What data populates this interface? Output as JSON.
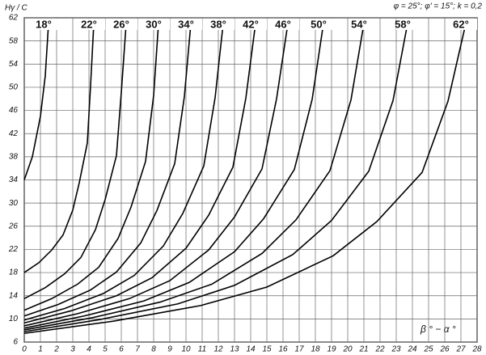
{
  "chart_data": {
    "type": "line",
    "y_label": "Hγ / C",
    "x_label": "β ° − α °",
    "annotation": "φ = 25°; φ' = 15°; k = 0,2",
    "xlim": [
      0,
      28
    ],
    "ylim": [
      6,
      62
    ],
    "xticks": [
      0,
      1,
      2,
      3,
      4,
      5,
      6,
      7,
      8,
      9,
      10,
      11,
      12,
      13,
      14,
      15,
      16,
      17,
      18,
      19,
      20,
      21,
      22,
      23,
      24,
      25,
      26,
      27,
      28
    ],
    "yticks": [
      6,
      10,
      14,
      18,
      22,
      26,
      30,
      34,
      38,
      42,
      46,
      50,
      54,
      58,
      62
    ],
    "grid": true,
    "series": [
      {
        "name": "18°",
        "color": "#000000",
        "x": [
          0,
          0.5,
          1,
          1.3,
          1.5
        ],
        "values": [
          34,
          38,
          45,
          52,
          61
        ]
      },
      {
        "name": "22°",
        "color": "#000000",
        "x": [
          0,
          0.9,
          1.7,
          2.4,
          3,
          3.4,
          3.9,
          4.1,
          4.3
        ],
        "values": [
          18,
          19.7,
          21.9,
          24.5,
          28.8,
          33.5,
          40.4,
          50.3,
          61
        ]
      },
      {
        "name": "26°",
        "color": "#000000",
        "x": [
          0,
          1.3,
          2.5,
          3.5,
          4.4,
          5,
          5.7,
          6,
          6.3
        ],
        "values": [
          13.5,
          15.4,
          17.8,
          20.6,
          25.4,
          30.6,
          38.2,
          49.1,
          61
        ]
      },
      {
        "name": "30°",
        "color": "#000000",
        "x": [
          0,
          1.7,
          3.3,
          4.6,
          5.8,
          6.6,
          7.5,
          8,
          8.3
        ],
        "values": [
          11.5,
          13.5,
          16,
          18.9,
          23.9,
          29.3,
          37.2,
          48.6,
          61
        ]
      },
      {
        "name": "34°",
        "color": "#000000",
        "x": [
          0,
          2.1,
          4.1,
          5.7,
          7.2,
          8.2,
          9.3,
          9.9,
          10.3
        ],
        "values": [
          10.5,
          12.5,
          15,
          18.1,
          23.1,
          28.7,
          36.8,
          48.4,
          61
        ]
      },
      {
        "name": "38°",
        "color": "#000000",
        "x": [
          0,
          2.5,
          4.9,
          6.8,
          8.6,
          9.8,
          11.1,
          11.8,
          12.3
        ],
        "values": [
          9.8,
          11.8,
          14.4,
          17.5,
          22.6,
          28.2,
          36.4,
          48.2,
          61
        ]
      },
      {
        "name": "42°",
        "color": "#000000",
        "x": [
          0,
          2.9,
          5.7,
          7.9,
          10,
          11.4,
          12.9,
          13.7,
          14.3
        ],
        "values": [
          9.3,
          11.4,
          14,
          17.1,
          22.2,
          27.9,
          36.2,
          48.1,
          61
        ]
      },
      {
        "name": "46°",
        "color": "#000000",
        "x": [
          0,
          3.3,
          6.5,
          9,
          11.4,
          13,
          14.7,
          15.6,
          16.3
        ],
        "values": [
          8.8,
          10.9,
          13.5,
          16.6,
          21.9,
          27.6,
          35.9,
          48,
          61
        ]
      },
      {
        "name": "50°",
        "color": "#000000",
        "x": [
          0,
          3.7,
          7.4,
          10.2,
          13,
          14.8,
          16.7,
          17.8,
          18.5
        ],
        "values": [
          8.4,
          10.5,
          13.1,
          16.3,
          21.6,
          27.3,
          35.8,
          47.9,
          61
        ]
      },
      {
        "name": "54°",
        "color": "#000000",
        "x": [
          0,
          4.2,
          8.4,
          11.6,
          14.7,
          16.8,
          18.9,
          20.2,
          21
        ],
        "values": [
          8.1,
          10.2,
          12.9,
          16,
          21.3,
          27.1,
          35.6,
          47.8,
          61
        ]
      },
      {
        "name": "58°",
        "color": "#000000",
        "x": [
          0,
          4.7,
          9.5,
          13,
          16.6,
          19,
          21.3,
          22.8,
          23.7
        ],
        "values": [
          7.8,
          9.9,
          12.6,
          15.8,
          21.1,
          27,
          35.5,
          47.7,
          61
        ]
      },
      {
        "name": "62°",
        "color": "#000000",
        "x": [
          0,
          5.5,
          10.9,
          15,
          19.1,
          21.8,
          24.6,
          26.2,
          27.3
        ],
        "values": [
          7.5,
          9.6,
          12.3,
          15.5,
          20.9,
          26.8,
          35.3,
          47.6,
          61
        ]
      }
    ]
  }
}
